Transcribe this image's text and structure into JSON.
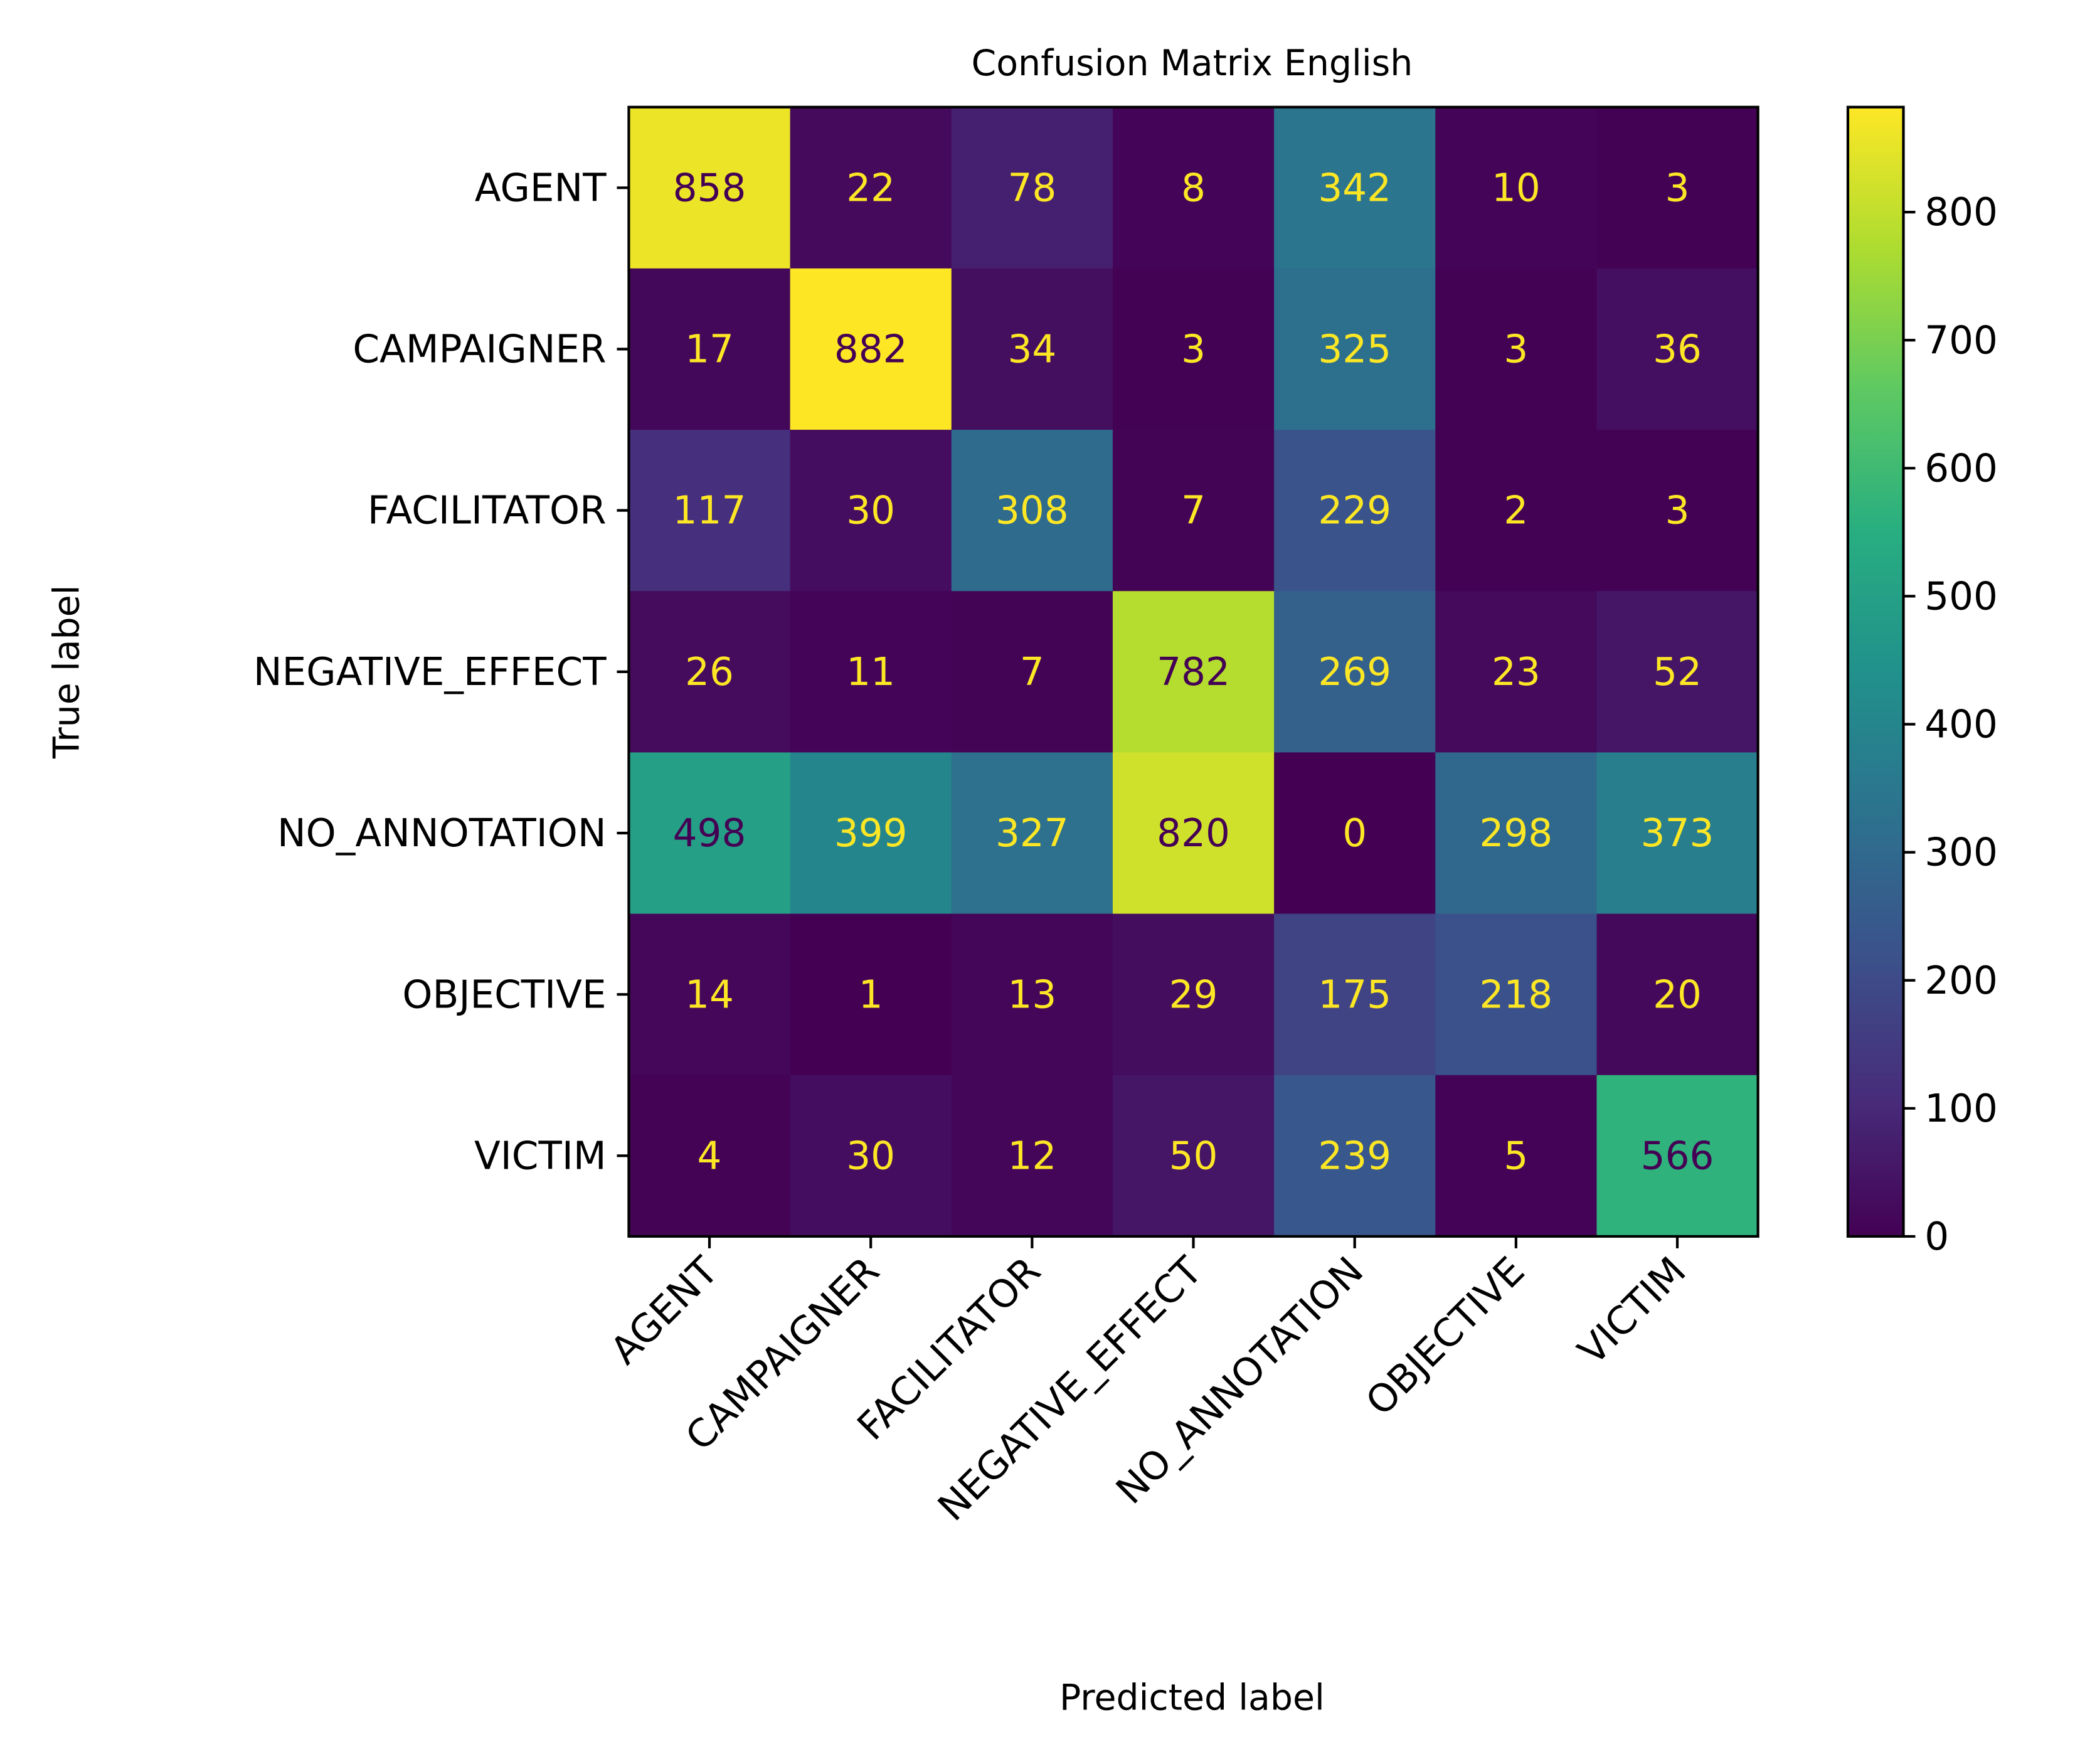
{
  "chart_data": {
    "type": "heatmap",
    "title": "Confusion Matrix English",
    "xlabel": "Predicted label",
    "ylabel": "True label",
    "x_categories": [
      "AGENT",
      "CAMPAIGNER",
      "FACILITATOR",
      "NEGATIVE_EFFECT",
      "NO_ANNOTATION",
      "OBJECTIVE",
      "VICTIM"
    ],
    "y_categories": [
      "AGENT",
      "CAMPAIGNER",
      "FACILITATOR",
      "NEGATIVE_EFFECT",
      "NO_ANNOTATION",
      "OBJECTIVE",
      "VICTIM"
    ],
    "values": [
      [
        858,
        22,
        78,
        8,
        342,
        10,
        3
      ],
      [
        17,
        882,
        34,
        3,
        325,
        3,
        36
      ],
      [
        117,
        30,
        308,
        7,
        229,
        2,
        3
      ],
      [
        26,
        11,
        7,
        782,
        269,
        23,
        52
      ],
      [
        498,
        399,
        327,
        820,
        0,
        298,
        373
      ],
      [
        14,
        1,
        13,
        29,
        175,
        218,
        20
      ],
      [
        4,
        30,
        12,
        50,
        239,
        5,
        566
      ]
    ],
    "colormap": "viridis",
    "color_range": [
      0,
      882
    ],
    "colorbar_ticks": [
      "0",
      "100",
      "200",
      "300",
      "400",
      "500",
      "600",
      "700",
      "800"
    ],
    "colors": {
      "text_on_dark": "#fde725",
      "text_on_light": "#440154"
    }
  }
}
